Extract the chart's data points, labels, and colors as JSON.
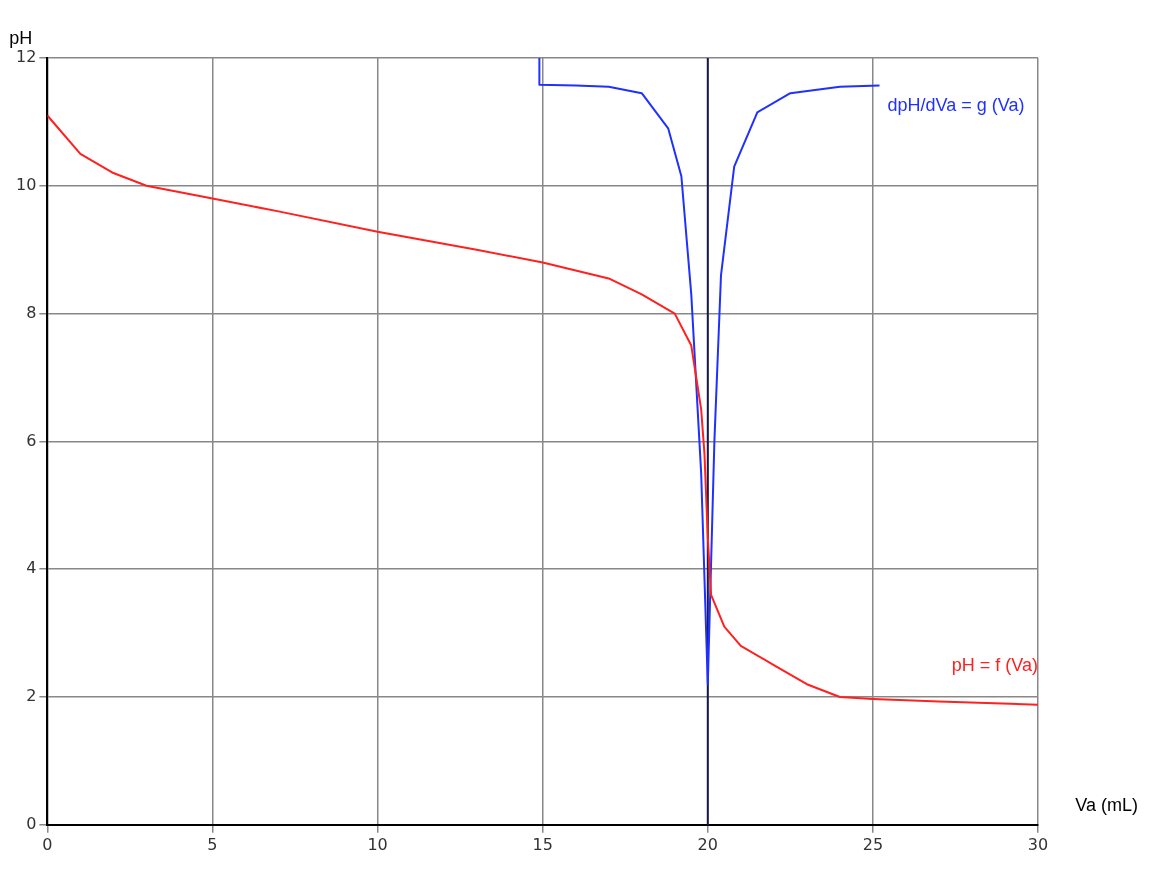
{
  "chart_data": {
    "type": "line",
    "xlabel": "Va (mL)",
    "ylabel": "pH",
    "xlim": [
      0,
      30
    ],
    "xticks": [
      0,
      5,
      10,
      15,
      20,
      25,
      30
    ],
    "ylim": [
      0,
      12
    ],
    "yticks": [
      0,
      2,
      4,
      6,
      8,
      10,
      12
    ],
    "grid": true,
    "legend": false,
    "marker": "none",
    "line_style": "solid",
    "series": [
      {
        "name": "pH = f (Va)",
        "color": "#ff2020",
        "x": [
          0,
          1,
          2,
          3,
          5,
          7,
          10,
          13,
          15,
          17,
          18,
          19,
          19.5,
          19.8,
          19.9,
          20,
          20.1,
          20.5,
          21,
          22,
          23,
          24,
          25,
          27,
          30
        ],
        "values": [
          11.1,
          10.5,
          10.2,
          10.0,
          9.8,
          9.6,
          9.28,
          9.0,
          8.8,
          8.55,
          8.3,
          8.0,
          7.5,
          6.5,
          5.8,
          4.5,
          3.6,
          3.1,
          2.8,
          2.5,
          2.2,
          2.0,
          1.97,
          1.93,
          1.88
        ]
      },
      {
        "name": "dpH/dVa = g (Va)",
        "color": "#2030ff",
        "x": [
          14.9,
          14.9,
          16,
          17,
          18,
          18.8,
          19.2,
          19.5,
          19.8,
          20,
          20.2,
          20.4,
          20.8,
          21.5,
          22.5,
          24,
          25.2
        ],
        "values": [
          12,
          11.58,
          11.57,
          11.55,
          11.45,
          10.9,
          10.15,
          8.3,
          5.5,
          2.2,
          6,
          8.6,
          10.3,
          11.15,
          11.45,
          11.55,
          11.57
        ]
      }
    ],
    "ref_lines": [
      {
        "axis": "x",
        "value": 20,
        "color": "#1a1a4a"
      }
    ]
  }
}
